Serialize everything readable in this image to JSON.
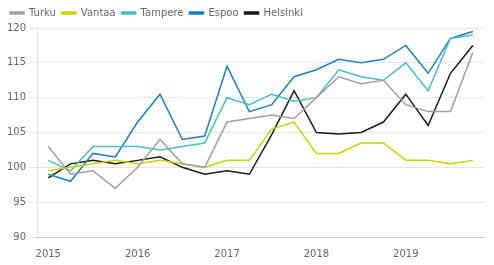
{
  "chart_data": {
    "type": "line",
    "categories": [
      "2015",
      null,
      null,
      null,
      "2016",
      null,
      null,
      null,
      "2017",
      null,
      null,
      null,
      "2018",
      null,
      null,
      null,
      "2019",
      null,
      null,
      null
    ],
    "series": [
      {
        "name": "Turku",
        "color": "#a0a0a0",
        "values": [
          103.0,
          99.0,
          99.5,
          97.0,
          100.0,
          104.0,
          100.5,
          100.0,
          106.5,
          107.0,
          107.5,
          107.0,
          110.0,
          113.0,
          112.0,
          112.5,
          109.0,
          108.0,
          108.0,
          116.5
        ]
      },
      {
        "name": "Vantaa",
        "color": "#c8d400",
        "values": [
          99.5,
          100.0,
          100.5,
          101.0,
          100.5,
          101.0,
          100.5,
          100.0,
          101.0,
          101.0,
          105.5,
          106.5,
          102.0,
          102.0,
          103.5,
          103.5,
          101.0,
          101.0,
          100.5,
          101.0
        ]
      },
      {
        "name": "Tampere",
        "color": "#4bbfbf",
        "values": [
          101.0,
          99.5,
          103.0,
          103.0,
          103.0,
          102.5,
          103.0,
          103.5,
          110.0,
          109.0,
          110.5,
          109.5,
          110.0,
          114.0,
          113.0,
          112.5,
          115.0,
          111.0,
          118.5,
          119.0
        ]
      },
      {
        "name": "Espoo",
        "color": "#1e7fc2",
        "values": [
          99.0,
          98.0,
          102.0,
          101.5,
          106.5,
          110.5,
          104.0,
          104.5,
          114.5,
          108.0,
          109.0,
          113.0,
          114.0,
          115.5,
          115.0,
          115.5,
          117.5,
          113.5,
          118.5,
          119.5
        ]
      },
      {
        "name": "Helsinki",
        "color": "#1a1a1a",
        "values": [
          98.5,
          100.5,
          101.0,
          100.5,
          101.0,
          101.5,
          100.0,
          99.0,
          99.5,
          99.0,
          104.7,
          111.0,
          105.0,
          104.8,
          105.0,
          106.5,
          110.5,
          106.0,
          113.5,
          117.5
        ]
      }
    ],
    "ylim": [
      90,
      120
    ],
    "yticks": [
      90,
      95,
      100,
      105,
      110,
      115,
      120
    ],
    "grid": true,
    "legend": "upper left"
  }
}
